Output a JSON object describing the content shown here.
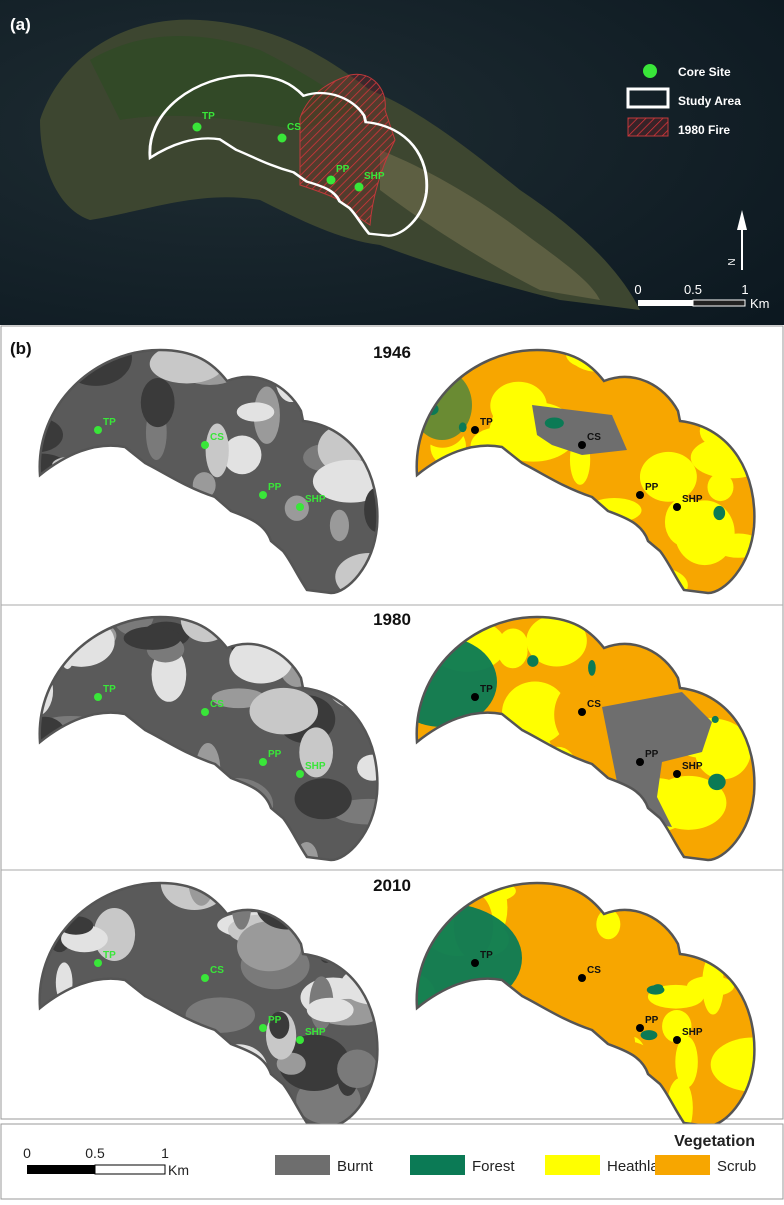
{
  "panel_a": {
    "label": "(a)",
    "legend": [
      "Core Site",
      "Study Area",
      "1980 Fire"
    ],
    "north": "N",
    "scale": {
      "ticks": [
        "0",
        "0.5",
        "1"
      ],
      "unit": "Km"
    },
    "sites": [
      "TP",
      "CS",
      "PP",
      "SHP"
    ]
  },
  "panel_b": {
    "label": "(b)",
    "rows": [
      {
        "year": "1946"
      },
      {
        "year": "1980"
      },
      {
        "year": "2010"
      }
    ],
    "sites": [
      "TP",
      "CS",
      "PP",
      "SHP"
    ],
    "scale": {
      "ticks": [
        "0",
        "0.5",
        "1"
      ],
      "unit": "Km"
    },
    "legend": {
      "title": "Vegetation",
      "items": [
        "Burnt",
        "Forest",
        "Heathland",
        "Scrub"
      ]
    }
  }
}
